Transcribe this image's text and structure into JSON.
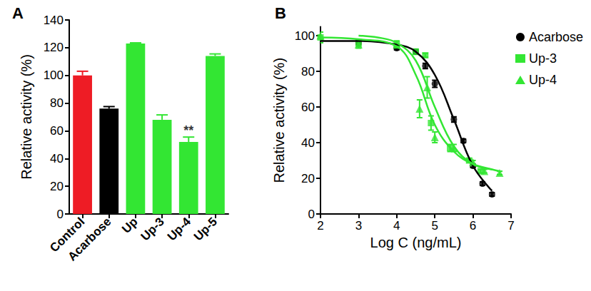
{
  "chart_data": [
    {
      "type": "bar",
      "title": "A",
      "categories": [
        "Control",
        "Acarbose",
        "Up",
        "Up-3",
        "Up-4",
        "Up-5"
      ],
      "values": [
        100,
        76,
        123,
        68,
        52,
        114
      ],
      "errors": [
        3,
        1.5,
        0.5,
        3.5,
        3.5,
        1.5
      ],
      "colors": [
        "#ee1c25",
        "#000000",
        "#33e633",
        "#33e633",
        "#33e633",
        "#33e633"
      ],
      "ylabel": "Relative activity (%)",
      "ylim": [
        0,
        140
      ],
      "yticks": [
        0,
        20,
        40,
        60,
        80,
        100,
        120,
        140
      ],
      "annotations": [
        {
          "text": "**",
          "category": "Up-4"
        }
      ],
      "grid": false
    },
    {
      "type": "scatter",
      "title": "B",
      "xlabel": "Log C (ng/mL)",
      "ylabel": "Relative activity (%)",
      "xlim": [
        2,
        7
      ],
      "xticks": [
        2,
        3,
        4,
        5,
        6,
        7
      ],
      "ylim": [
        0,
        105
      ],
      "yticks": [
        0,
        20,
        40,
        60,
        80,
        100
      ],
      "legend": "top-right",
      "grid": false,
      "series": [
        {
          "name": "Acarbose",
          "color": "#000000",
          "marker": "circle",
          "x": [
            3,
            4,
            4.5,
            4.75,
            5,
            5.5,
            5.75,
            6,
            6.25,
            6.5
          ],
          "values": [
            96,
            93,
            91,
            83,
            73,
            53,
            41,
            27,
            17,
            11
          ],
          "errors": [
            1,
            1,
            1,
            1.5,
            2,
            1.5,
            1,
            1,
            1,
            1
          ],
          "fit": {
            "x": [
              2,
              3,
              4,
              4.5,
              5,
              5.5,
              6,
              6.5
            ],
            "values": [
              97,
              97,
              95,
              91,
              78,
              53,
              27,
              13
            ]
          }
        },
        {
          "name": "Up-3",
          "color": "#33e633",
          "marker": "square",
          "x": [
            2,
            3,
            4,
            4.5,
            4.75,
            4.9,
            5.4,
            5.9,
            6.2
          ],
          "values": [
            99,
            96,
            95,
            91,
            89,
            51,
            37,
            30,
            24
          ],
          "errors": [
            3,
            2,
            2,
            1.5,
            1,
            4,
            2,
            1,
            1
          ],
          "fit": {
            "x": [
              3,
              3.5,
              4,
              4.5,
              5,
              5.5,
              6,
              6.5
            ],
            "values": [
              100,
              99,
              96,
              86,
              60,
              38,
              28,
              25
            ]
          }
        },
        {
          "name": "Up-4",
          "color": "#33e633",
          "marker": "triangle",
          "x": [
            2,
            3,
            4,
            4.6,
            4.8,
            5,
            5.5,
            6,
            6.3,
            6.7
          ],
          "values": [
            100,
            95,
            95,
            59,
            71,
            43,
            37,
            29,
            24,
            23
          ],
          "errors": [
            2,
            2,
            2,
            5,
            6,
            3,
            2,
            1,
            1,
            1
          ],
          "fit": {
            "x": [
              2,
              3,
              4,
              4.5,
              5,
              5.5,
              6,
              6.5,
              6.7
            ],
            "values": [
              99,
              98,
              94,
              78,
              50,
              35,
              28,
              25,
              24
            ]
          }
        }
      ]
    }
  ]
}
